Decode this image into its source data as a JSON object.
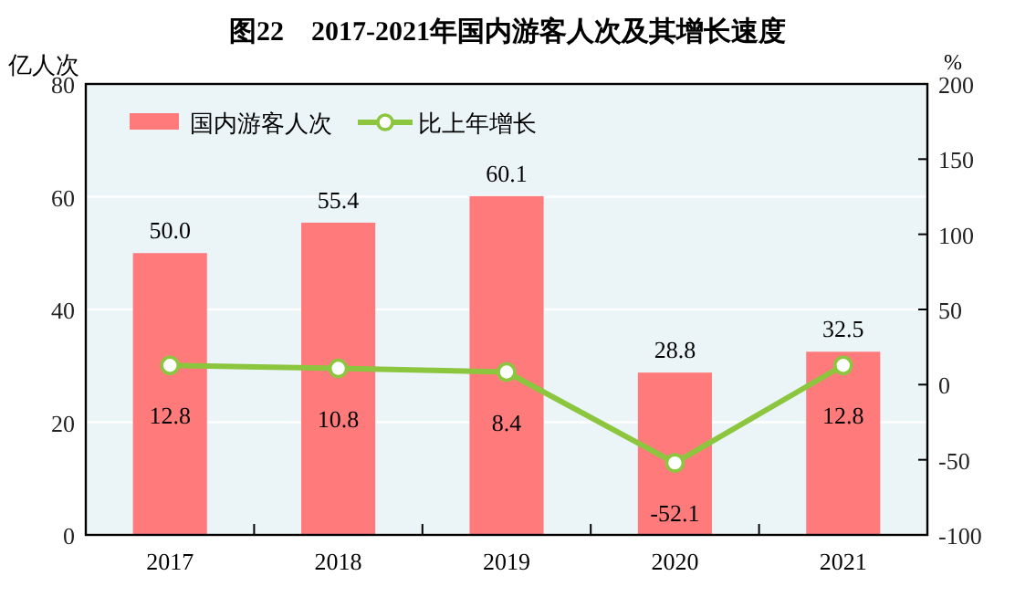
{
  "chart_data": {
    "type": "bar",
    "title": "图22　2017-2021年国内游客人次及其增长速度",
    "ylabel": "亿人次",
    "y2label": "%",
    "categories": [
      "2017",
      "2018",
      "2019",
      "2020",
      "2021"
    ],
    "series": [
      {
        "name": "国内游客人次",
        "color": "#ff7b7b",
        "values": [
          50.0,
          55.4,
          60.1,
          28.8,
          32.5
        ],
        "value_labels": [
          "50.0",
          "55.4",
          "60.1",
          "28.8",
          "32.5"
        ]
      },
      {
        "name": "比上年增长",
        "type": "line",
        "axis": "y2",
        "marker": "circle",
        "color": "#8cc63f",
        "values": [
          12.8,
          10.8,
          8.4,
          -52.1,
          12.8
        ],
        "value_labels": [
          "12.8",
          "10.8",
          "8.4",
          "-52.1",
          "12.8"
        ]
      }
    ],
    "ylim": [
      0,
      80
    ],
    "yticks": [
      0,
      20,
      40,
      60,
      80
    ],
    "y2lim": [
      -100,
      200
    ],
    "y2ticks": [
      -100,
      -50,
      0,
      50,
      100,
      150,
      200
    ],
    "grid": "y",
    "legend": "top left"
  }
}
